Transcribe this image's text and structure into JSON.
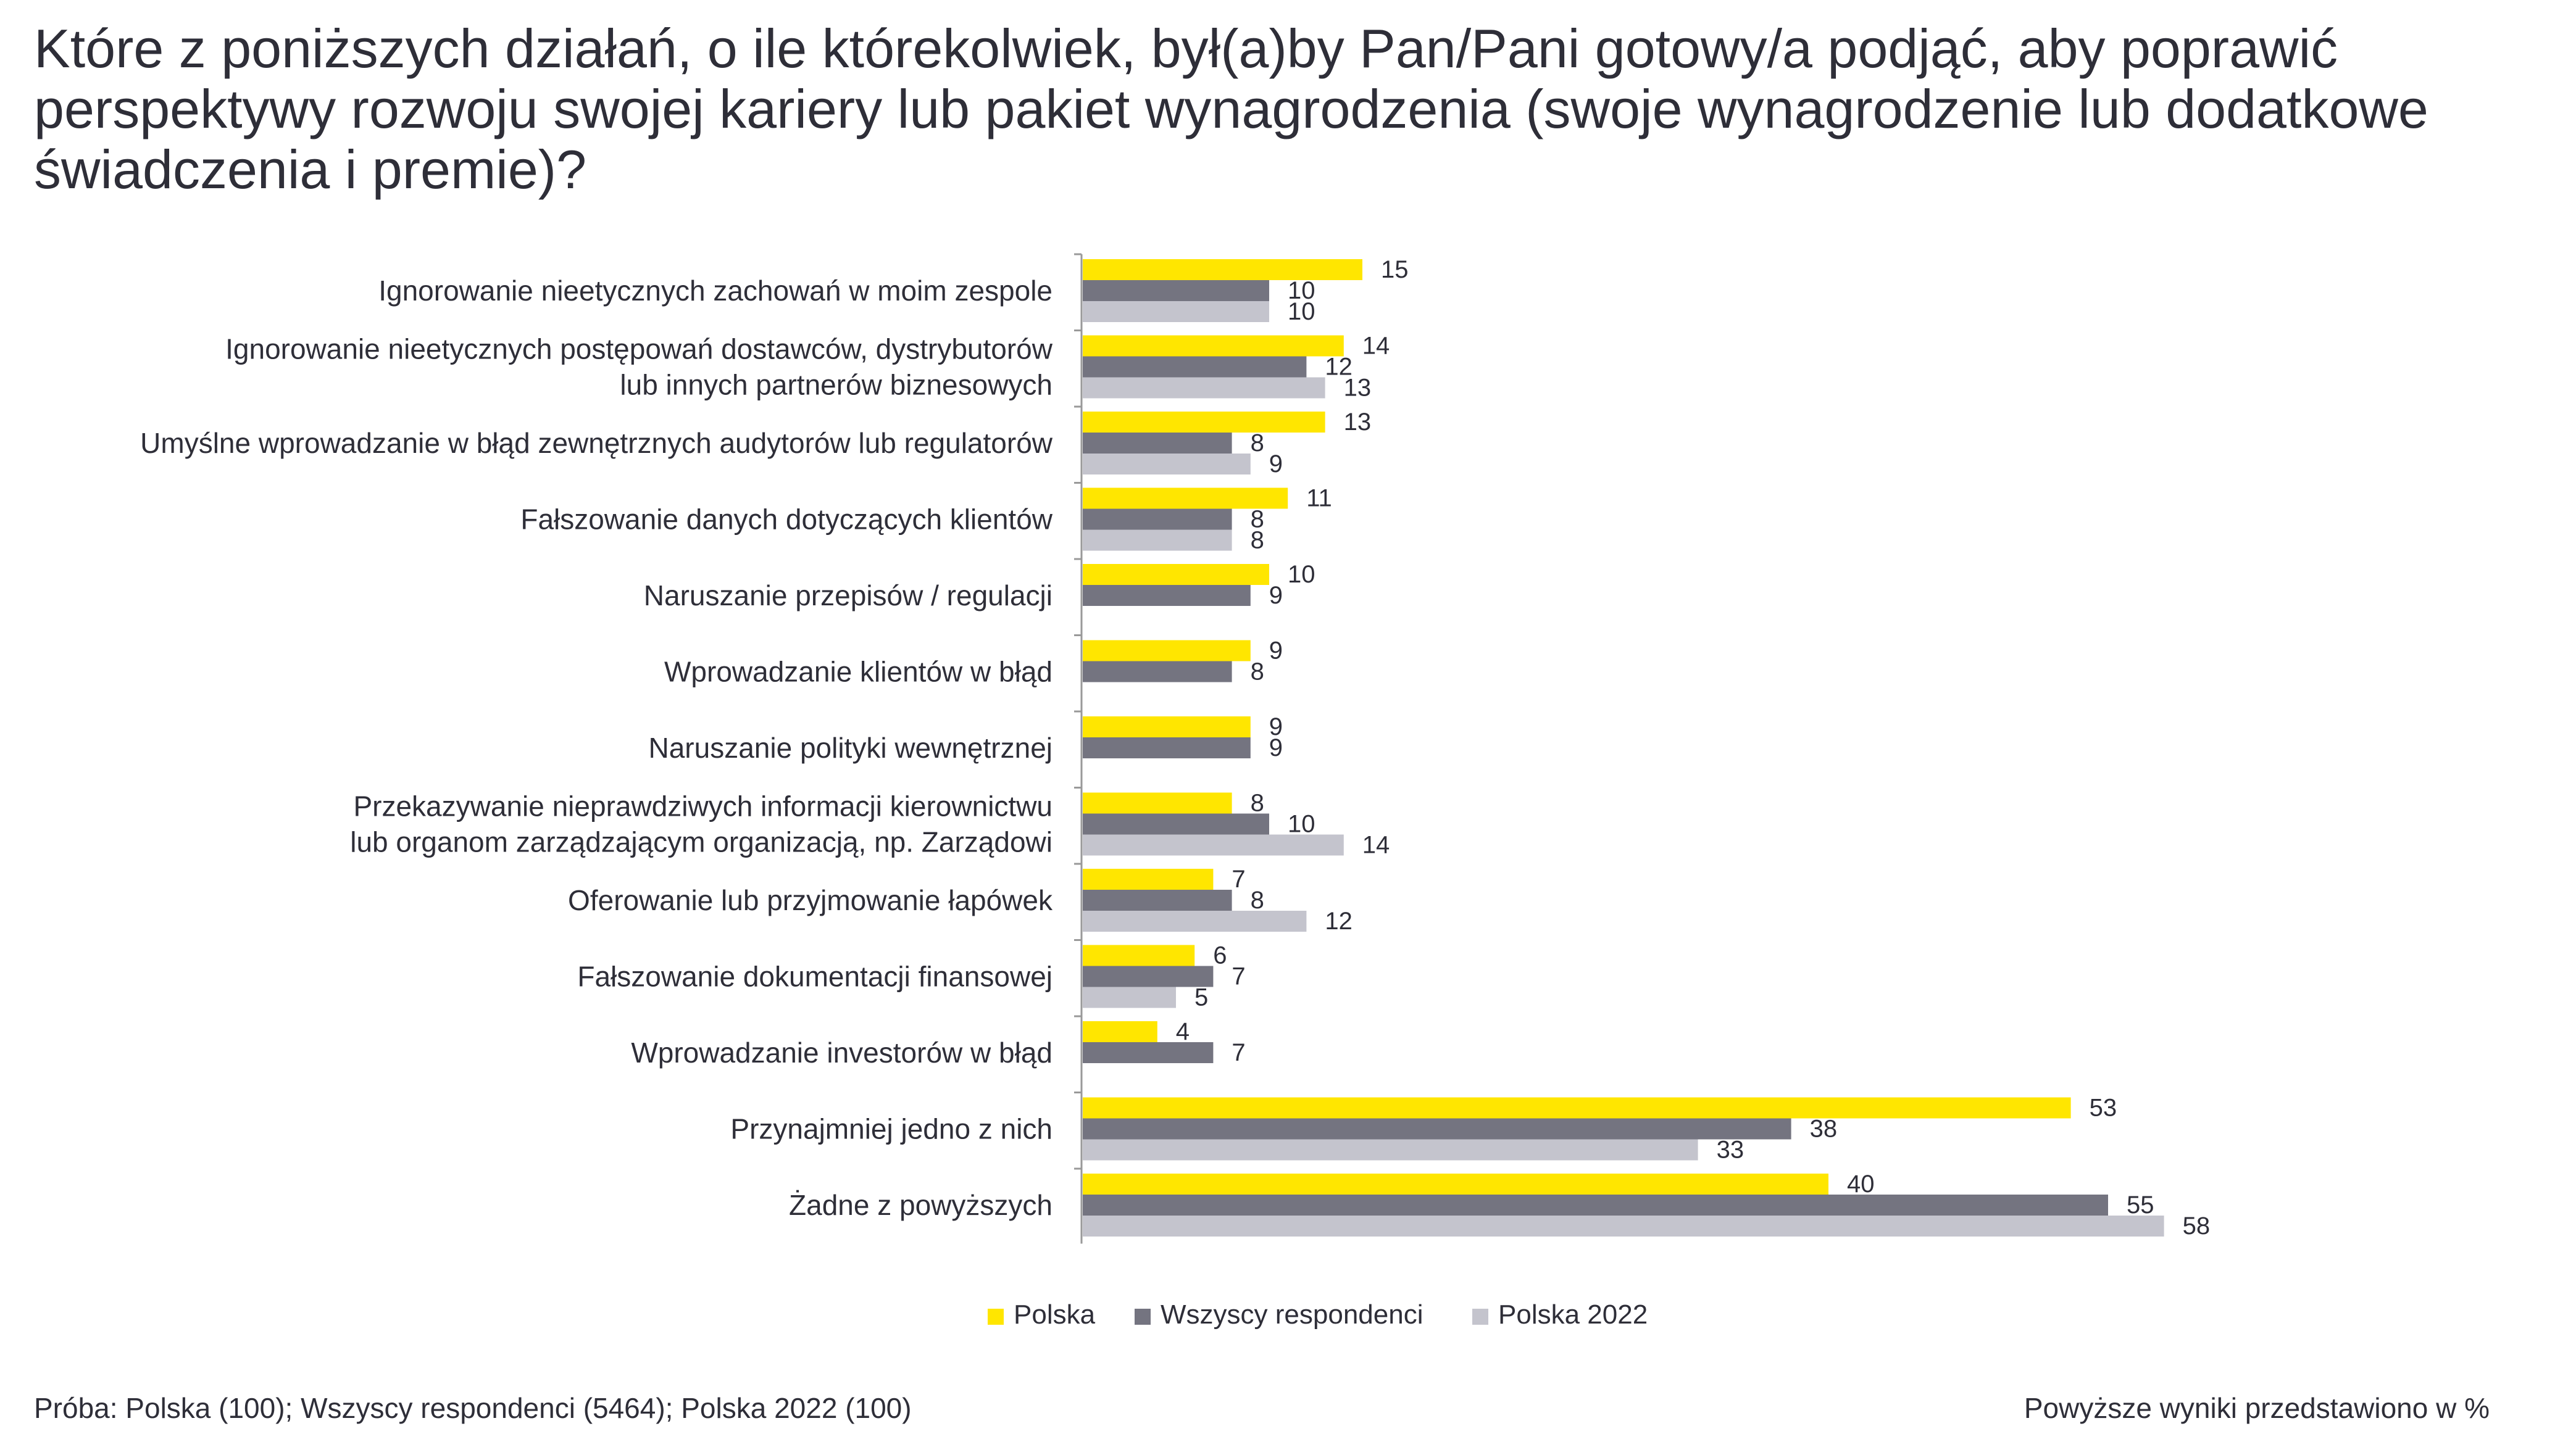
{
  "title": "Które z poniższych działań, o ile którekolwiek, był(a)by Pan/Pani gotowy/a podjąć, aby poprawić perspektywy rozwoju swojej kariery lub pakiet wynagrodzenia (swoje wynagrodzenie lub dodatkowe świadczenia i premie)?",
  "footnote_left": "Próba: Polska (100); Wszyscy respondenci (5464); Polska 2022 (100)",
  "footnote_right": "Powyższe wyniki przedstawiono w %",
  "colors": {
    "polska": "#ffe600",
    "wszyscy": "#747480",
    "polska2022": "#c4c4cd",
    "axis": "#999999",
    "text": "#2e2e38"
  },
  "chart_data": {
    "type": "bar",
    "orientation": "horizontal",
    "unit": "%",
    "xlim": [
      0,
      60
    ],
    "categories": [
      [
        "Ignorowanie nieetycznych zachowań w moim zespole"
      ],
      [
        "Ignorowanie nieetycznych postępowań dostawców, dystrybutorów",
        "lub innych partnerów biznesowych"
      ],
      [
        "Umyślne wprowadzanie w błąd zewnętrznych audytorów lub regulatorów"
      ],
      [
        "Fałszowanie danych dotyczących klientów"
      ],
      [
        "Naruszanie przepisów / regulacji"
      ],
      [
        "Wprowadzanie klientów w błąd"
      ],
      [
        "Naruszanie polityki wewnętrznej"
      ],
      [
        "Przekazywanie nieprawdziwych informacji kierownictwu",
        "lub organom zarządzającym organizacją, np. Zarządowi"
      ],
      [
        "Oferowanie lub przyjmowanie łapówek"
      ],
      [
        "Fałszowanie dokumentacji finansowej"
      ],
      [
        "Wprowadzanie investorów w błąd"
      ],
      [
        "Przynajmniej jedno z nich"
      ],
      [
        "Żadne z powyższych"
      ]
    ],
    "series": [
      {
        "name": "Polska",
        "color": "#ffe600",
        "values": [
          15,
          14,
          13,
          11,
          10,
          9,
          9,
          8,
          7,
          6,
          4,
          53,
          40
        ]
      },
      {
        "name": "Wszyscy respondenci",
        "color": "#747480",
        "values": [
          10,
          12,
          8,
          8,
          9,
          8,
          9,
          10,
          8,
          7,
          7,
          38,
          55
        ]
      },
      {
        "name": "Polska 2022",
        "color": "#c4c4cd",
        "values": [
          10,
          13,
          9,
          8,
          null,
          null,
          null,
          14,
          12,
          5,
          null,
          33,
          58
        ]
      }
    ],
    "legend": [
      "Polska",
      "Wszyscy respondenci",
      "Polska 2022"
    ],
    "legend_position": "bottom-center"
  }
}
